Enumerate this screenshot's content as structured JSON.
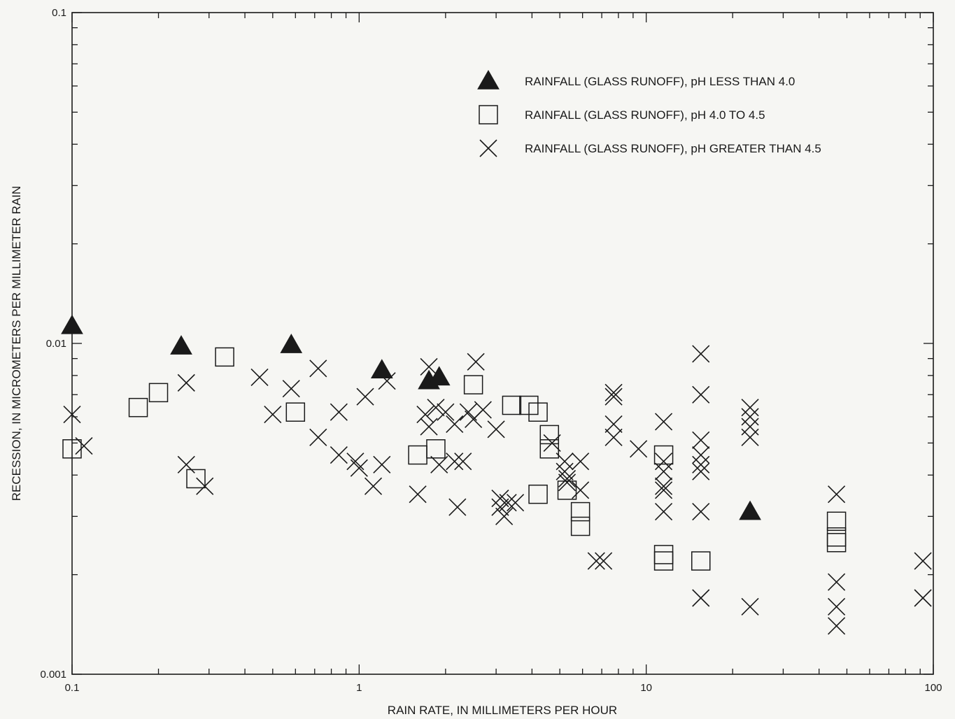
{
  "chart_data": {
    "type": "scatter",
    "title": "",
    "xlabel": "RAIN RATE, IN MILLIMETERS PER HOUR",
    "ylabel": "RECESSION, IN MICROMETERS PER MILLIMETER RAIN",
    "x_scale": "log",
    "y_scale": "log",
    "xlim": [
      0.1,
      100
    ],
    "ylim": [
      0.001,
      0.1
    ],
    "x_tick_labels": [
      "0.1",
      "1",
      "10",
      "100"
    ],
    "y_tick_labels": [
      "0.001",
      "0.01",
      "0.1"
    ],
    "x_tick_values": [
      0.1,
      1,
      10,
      100
    ],
    "y_tick_values": [
      0.001,
      0.01,
      0.1
    ],
    "grid": false,
    "legend_position": "top-right",
    "series": [
      {
        "name": "RAINFALL (GLASS RUNOFF), pH LESS THAN 4.0",
        "marker": "filled-triangle",
        "points": [
          [
            0.1,
            0.0113
          ],
          [
            0.24,
            0.0098
          ],
          [
            0.58,
            0.0099
          ],
          [
            1.2,
            0.0083
          ],
          [
            1.75,
            0.0077
          ],
          [
            1.9,
            0.0079
          ],
          [
            23,
            0.0031
          ]
        ]
      },
      {
        "name": "RAINFALL (GLASS RUNOFF), pH 4.0 TO 4.5",
        "marker": "open-square",
        "points": [
          [
            0.1,
            0.0048
          ],
          [
            0.17,
            0.0064
          ],
          [
            0.2,
            0.0071
          ],
          [
            0.27,
            0.0039
          ],
          [
            0.34,
            0.0091
          ],
          [
            0.6,
            0.0062
          ],
          [
            1.6,
            0.0046
          ],
          [
            1.85,
            0.0048
          ],
          [
            2.5,
            0.0075
          ],
          [
            3.4,
            0.0065
          ],
          [
            3.9,
            0.0065
          ],
          [
            4.2,
            0.0062
          ],
          [
            4.2,
            0.0035
          ],
          [
            4.6,
            0.0053
          ],
          [
            4.6,
            0.0048
          ],
          [
            5.3,
            0.0036
          ],
          [
            5.9,
            0.0031
          ],
          [
            5.9,
            0.0028
          ],
          [
            11.5,
            0.0046
          ],
          [
            11.5,
            0.0023
          ],
          [
            11.5,
            0.0022
          ],
          [
            15.5,
            0.0022
          ],
          [
            46,
            0.0029
          ],
          [
            46,
            0.0026
          ],
          [
            46,
            0.0025
          ]
        ]
      },
      {
        "name": "RAINFALL (GLASS RUNOFF), pH GREATER THAN 4.5",
        "marker": "x",
        "points": [
          [
            0.1,
            0.0061
          ],
          [
            0.11,
            0.0049
          ],
          [
            0.25,
            0.0076
          ],
          [
            0.25,
            0.0043
          ],
          [
            0.29,
            0.0037
          ],
          [
            0.45,
            0.0079
          ],
          [
            0.5,
            0.0061
          ],
          [
            0.58,
            0.0073
          ],
          [
            0.72,
            0.0084
          ],
          [
            0.72,
            0.0052
          ],
          [
            0.85,
            0.0062
          ],
          [
            0.85,
            0.0046
          ],
          [
            0.97,
            0.0044
          ],
          [
            1.0,
            0.0042
          ],
          [
            1.05,
            0.0069
          ],
          [
            1.12,
            0.0037
          ],
          [
            1.2,
            0.0043
          ],
          [
            1.25,
            0.0077
          ],
          [
            1.6,
            0.0035
          ],
          [
            1.7,
            0.0061
          ],
          [
            1.75,
            0.0056
          ],
          [
            1.75,
            0.0085
          ],
          [
            1.85,
            0.0064
          ],
          [
            1.9,
            0.0043
          ],
          [
            2.0,
            0.0062
          ],
          [
            2.15,
            0.0057
          ],
          [
            2.15,
            0.0044
          ],
          [
            2.2,
            0.0032
          ],
          [
            2.3,
            0.0044
          ],
          [
            2.4,
            0.0062
          ],
          [
            2.5,
            0.0059
          ],
          [
            2.55,
            0.0088
          ],
          [
            2.7,
            0.0063
          ],
          [
            3.0,
            0.0055
          ],
          [
            3.1,
            0.0034
          ],
          [
            3.1,
            0.0032
          ],
          [
            3.2,
            0.003
          ],
          [
            3.3,
            0.0033
          ],
          [
            3.5,
            0.0033
          ],
          [
            4.7,
            0.005
          ],
          [
            5.2,
            0.0044
          ],
          [
            5.2,
            0.0041
          ],
          [
            5.3,
            0.0039
          ],
          [
            5.3,
            0.0038
          ],
          [
            5.9,
            0.0044
          ],
          [
            5.9,
            0.0036
          ],
          [
            6.7,
            0.0022
          ],
          [
            7.1,
            0.0022
          ],
          [
            7.7,
            0.0069
          ],
          [
            7.7,
            0.0071
          ],
          [
            7.7,
            0.0057
          ],
          [
            7.7,
            0.0052
          ],
          [
            9.4,
            0.0048
          ],
          [
            11.5,
            0.0058
          ],
          [
            11.5,
            0.0044
          ],
          [
            11.5,
            0.0041
          ],
          [
            11.5,
            0.0037
          ],
          [
            11.5,
            0.0036
          ],
          [
            11.5,
            0.0031
          ],
          [
            15.5,
            0.0093
          ],
          [
            15.5,
            0.007
          ],
          [
            15.5,
            0.0051
          ],
          [
            15.5,
            0.0046
          ],
          [
            15.5,
            0.0043
          ],
          [
            15.5,
            0.0041
          ],
          [
            15.5,
            0.0031
          ],
          [
            15.5,
            0.0017
          ],
          [
            23,
            0.0064
          ],
          [
            23,
            0.006
          ],
          [
            23,
            0.0056
          ],
          [
            23,
            0.0052
          ],
          [
            23,
            0.0016
          ],
          [
            46,
            0.0035
          ],
          [
            46,
            0.0019
          ],
          [
            46,
            0.0016
          ],
          [
            46,
            0.0014
          ],
          [
            92,
            0.0022
          ],
          [
            92,
            0.0017
          ]
        ]
      }
    ]
  }
}
